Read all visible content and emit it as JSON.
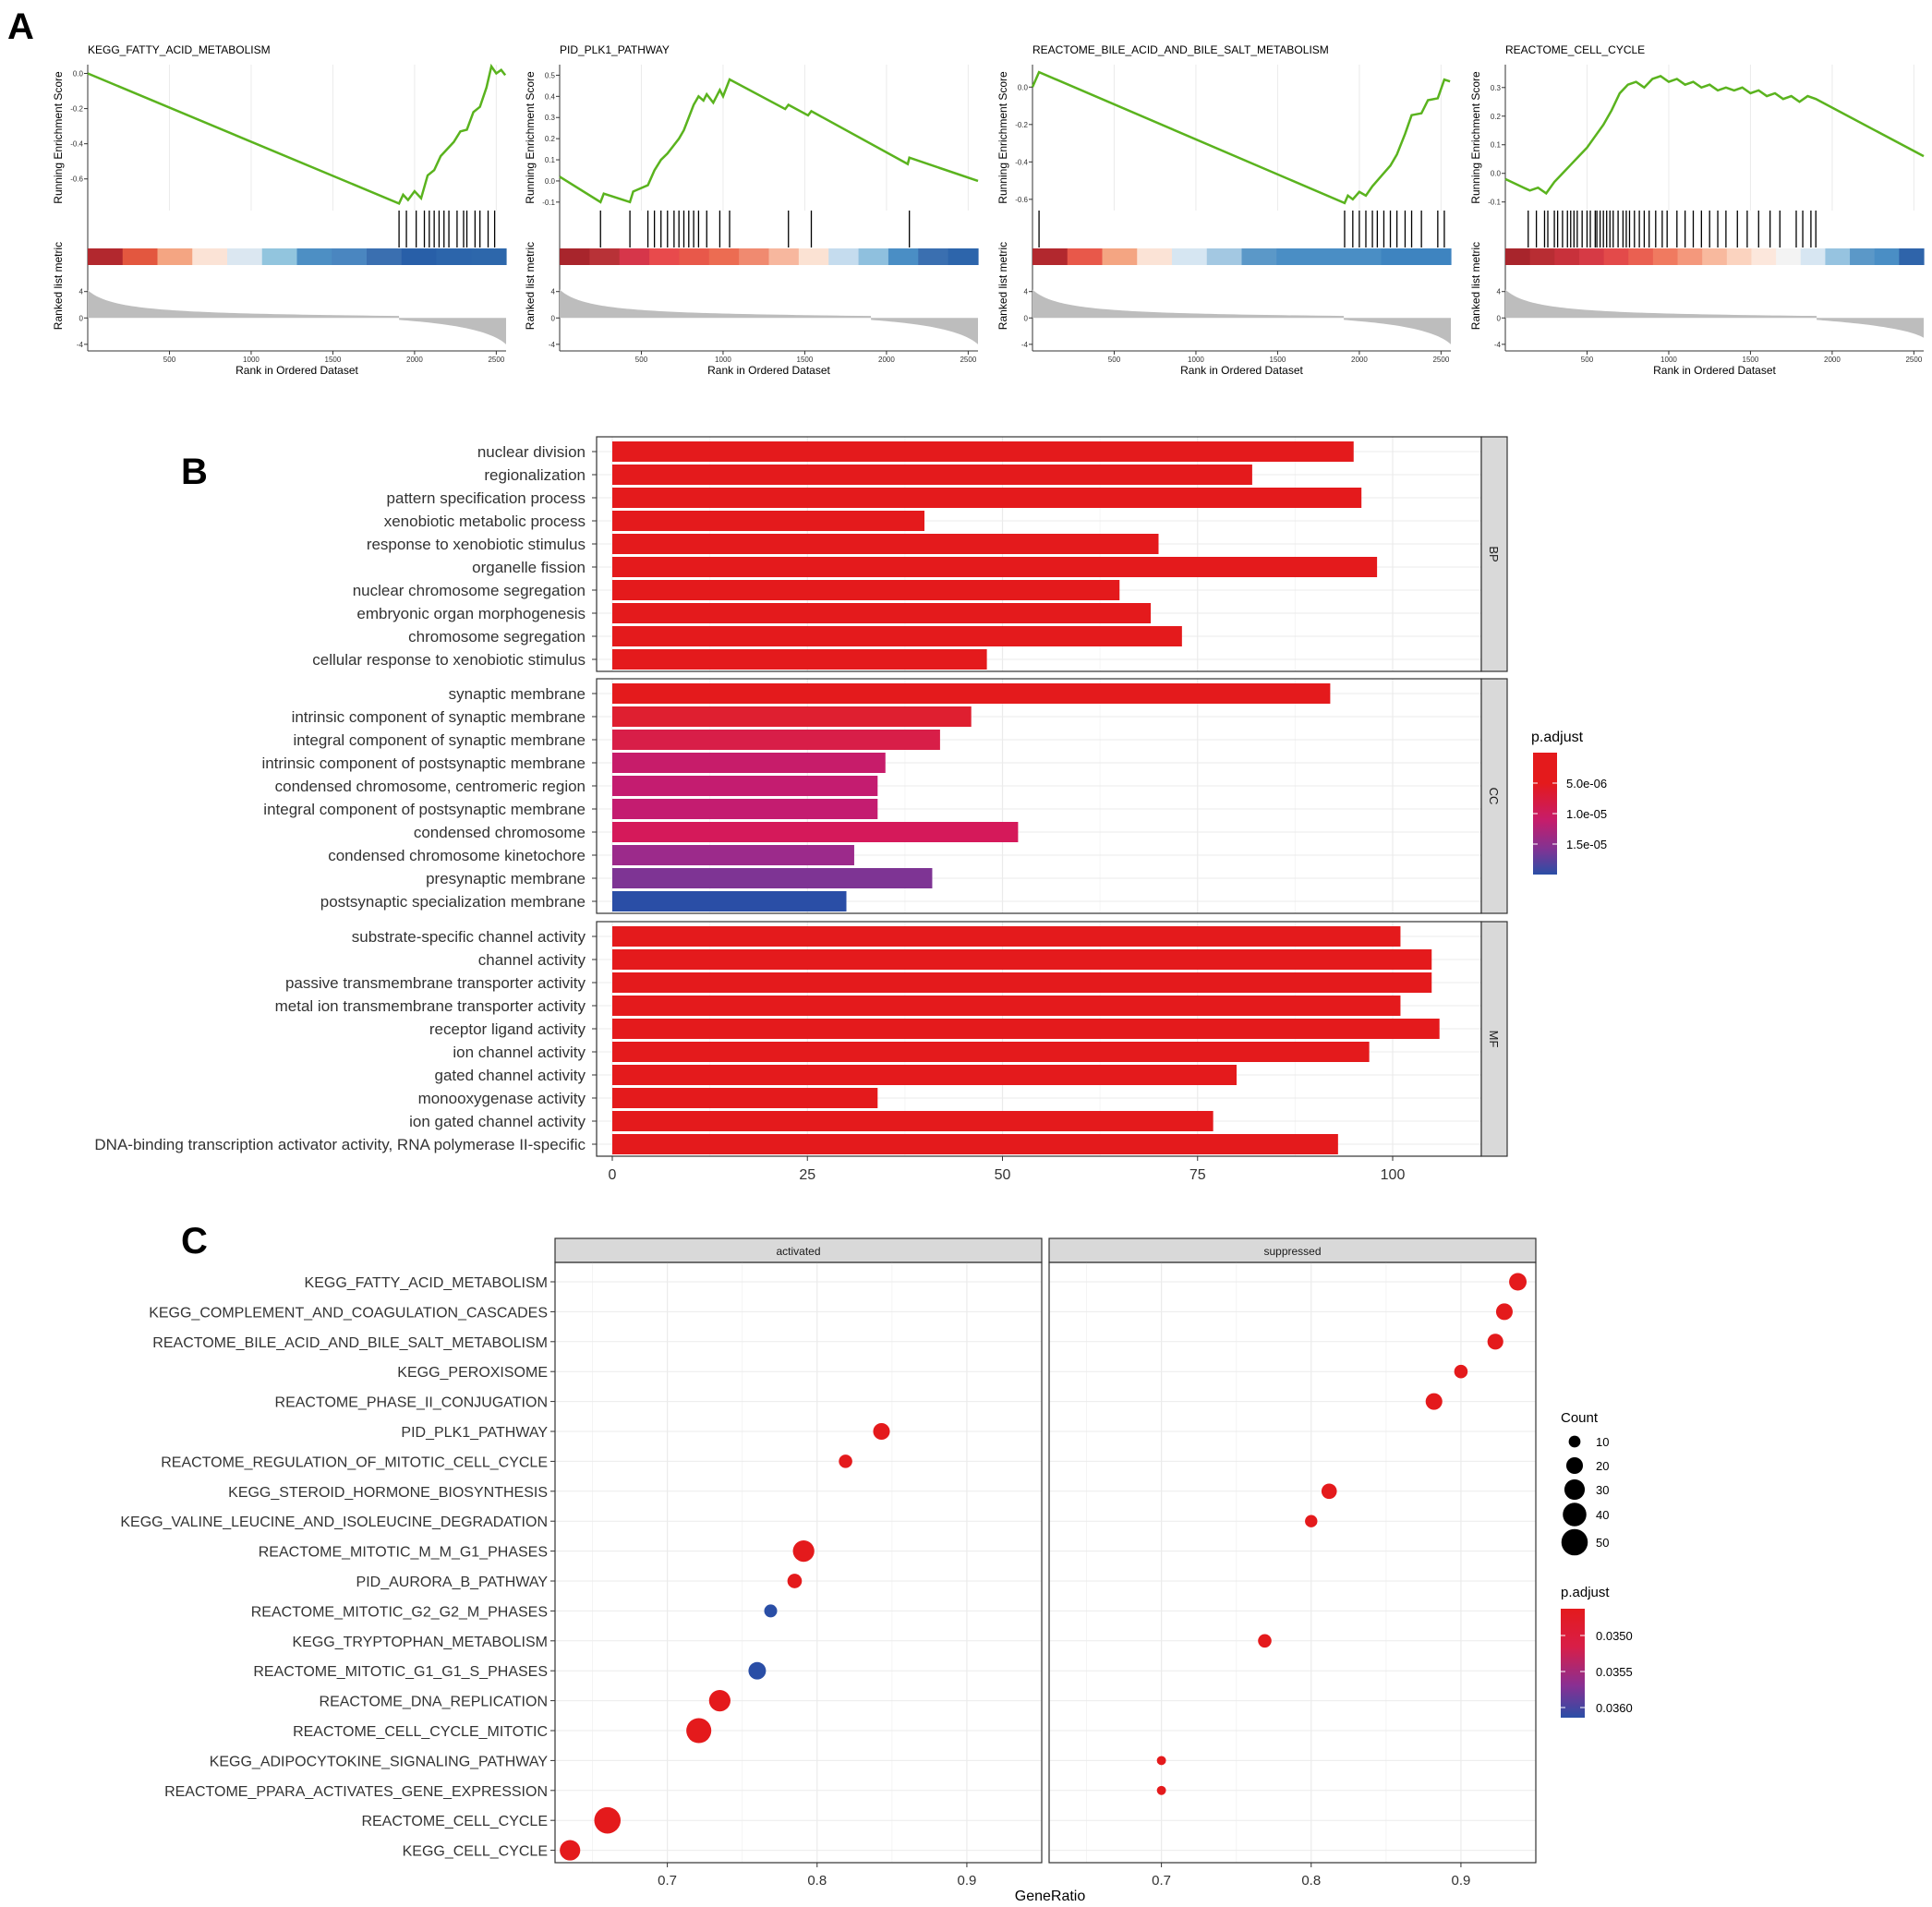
{
  "panels": {
    "a": {
      "letter": "A",
      "common": {
        "ylabel_es": "Running Enrichment Score",
        "ylabel_rank": "Ranked list metric",
        "xlabel": "Rank in Ordered Dataset",
        "x_ticks": [
          "500",
          "1000",
          "1500",
          "2000",
          "2500"
        ],
        "rank_ticks": [
          "4",
          "0",
          "-4"
        ]
      }
    },
    "b": {
      "letter": "B"
    },
    "c": {
      "letter": "C"
    }
  },
  "chart_data": [
    {
      "type": "line",
      "panel": "A1",
      "title": "KEGG_FATTY_ACID_METABOLISM",
      "ylabel": "Running Enrichment Score",
      "xlabel": "Rank in Ordered Dataset",
      "xlim": [
        0,
        2560
      ],
      "ylim": [
        -0.78,
        0.05
      ],
      "y_ticks": [
        0.0,
        -0.2,
        -0.4,
        -0.6
      ],
      "y_tick_labels": [
        "0.0",
        "-0.2",
        "-0.4",
        "-0.6"
      ],
      "es_curve": {
        "x": [
          0,
          1905,
          1930,
          1960,
          2000,
          2040,
          2080,
          2120,
          2160,
          2200,
          2240,
          2280,
          2320,
          2360,
          2400,
          2440,
          2470,
          2500,
          2530,
          2555
        ],
        "y": [
          0.0,
          -0.74,
          -0.69,
          -0.72,
          -0.67,
          -0.71,
          -0.58,
          -0.55,
          -0.47,
          -0.43,
          -0.39,
          -0.33,
          -0.32,
          -0.22,
          -0.19,
          -0.08,
          0.04,
          0.0,
          0.02,
          -0.01
        ]
      },
      "hits": [
        1905,
        1950,
        2010,
        2060,
        2090,
        2120,
        2150,
        2180,
        2210,
        2260,
        2300,
        2320,
        2370,
        2400,
        2450,
        2490
      ],
      "heat_colors": [
        "#b2282e",
        "#e3573f",
        "#f4a582",
        "#fbe3d6",
        "#dbe7f1",
        "#92c5de",
        "#4d8fc4",
        "#4a86c0",
        "#3a6fb0",
        "#285fa8",
        "#2c65ab",
        "#2d67ab"
      ],
      "metric": {
        "start": 4.2,
        "end": -4.0,
        "split": 1905
      }
    },
    {
      "type": "line",
      "panel": "A2",
      "title": "PID_PLK1_PATHWAY",
      "ylabel": "Running Enrichment Score",
      "xlabel": "Rank in Ordered Dataset",
      "xlim": [
        0,
        2560
      ],
      "ylim": [
        -0.14,
        0.55
      ],
      "y_ticks": [
        -0.1,
        0.0,
        0.1,
        0.2,
        0.3,
        0.4,
        0.5
      ],
      "y_tick_labels": [
        "-0.1",
        "0.0",
        "0.1",
        "0.2",
        "0.3",
        "0.4",
        "0.5"
      ],
      "es_curve": {
        "x": [
          0,
          250,
          270,
          430,
          450,
          540,
          580,
          620,
          660,
          700,
          730,
          760,
          790,
          820,
          850,
          880,
          900,
          940,
          980,
          1000,
          1040,
          1380,
          1400,
          1520,
          1540,
          2130,
          2140,
          2560
        ],
        "y": [
          0.02,
          -0.1,
          -0.06,
          -0.1,
          -0.05,
          -0.02,
          0.05,
          0.1,
          0.13,
          0.17,
          0.2,
          0.24,
          0.3,
          0.36,
          0.4,
          0.38,
          0.41,
          0.37,
          0.43,
          0.4,
          0.48,
          0.34,
          0.36,
          0.31,
          0.33,
          0.08,
          0.11,
          0.0
        ]
      },
      "hits": [
        250,
        430,
        540,
        580,
        620,
        660,
        700,
        730,
        760,
        790,
        820,
        850,
        900,
        980,
        1040,
        1400,
        1540,
        2140
      ],
      "heat_colors": [
        "#a8252c",
        "#b83237",
        "#d6364a",
        "#e84a4c",
        "#e8584a",
        "#ec6c52",
        "#f08a70",
        "#f7b79e",
        "#fbe2d3",
        "#c5dcee",
        "#8fc0de",
        "#4a8ec5",
        "#3a6fb0",
        "#2d65ab"
      ],
      "metric": {
        "start": 4.3,
        "end": -4.0,
        "split": 1905
      }
    },
    {
      "type": "line",
      "panel": "A3",
      "title": "REACTOME_BILE_ACID_AND_BILE_SALT_METABOLISM",
      "ylabel": "Running Enrichment Score",
      "xlabel": "Rank in Ordered Dataset",
      "xlim": [
        0,
        2560
      ],
      "ylim": [
        -0.66,
        0.12
      ],
      "y_ticks": [
        0.0,
        -0.2,
        -0.4,
        -0.6
      ],
      "y_tick_labels": [
        "0.0",
        "-0.2",
        "-0.4",
        "-0.6"
      ],
      "es_curve": {
        "x": [
          0,
          40,
          1910,
          1930,
          1960,
          2000,
          2040,
          2080,
          2110,
          2150,
          2190,
          2230,
          2280,
          2320,
          2380,
          2420,
          2480,
          2520,
          2555
        ],
        "y": [
          0.0,
          0.08,
          -0.62,
          -0.58,
          -0.6,
          -0.56,
          -0.58,
          -0.53,
          -0.5,
          -0.46,
          -0.42,
          -0.36,
          -0.25,
          -0.15,
          -0.14,
          -0.07,
          -0.06,
          0.04,
          0.03
        ]
      },
      "hits": [
        40,
        1910,
        1960,
        2000,
        2040,
        2080,
        2110,
        2150,
        2190,
        2230,
        2280,
        2320,
        2380,
        2480,
        2520
      ],
      "heat_colors": [
        "#b2282e",
        "#e8584a",
        "#f4a582",
        "#fbe3d6",
        "#d6e6f2",
        "#a3c8e2",
        "#5b98c8",
        "#4a8ec5",
        "#4a8ec5",
        "#4a8ec5",
        "#3e84c0",
        "#3e84c0"
      ],
      "metric": {
        "start": 4.3,
        "end": -4.0,
        "split": 1905
      }
    },
    {
      "type": "line",
      "panel": "A4",
      "title": "REACTOME_CELL_CYCLE",
      "ylabel": "Running Enrichment Score",
      "xlabel": "Rank in Ordered Dataset",
      "xlim": [
        0,
        2560
      ],
      "ylim": [
        -0.13,
        0.38
      ],
      "y_ticks": [
        -0.1,
        0.0,
        0.1,
        0.2,
        0.3
      ],
      "y_tick_labels": [
        "-0.1",
        "0.0",
        "0.1",
        "0.2",
        "0.3"
      ],
      "es_curve": {
        "x": [
          0,
          150,
          200,
          250,
          300,
          350,
          400,
          450,
          500,
          550,
          600,
          650,
          700,
          750,
          800,
          850,
          900,
          950,
          1000,
          1050,
          1100,
          1150,
          1200,
          1250,
          1300,
          1350,
          1400,
          1450,
          1500,
          1550,
          1600,
          1650,
          1700,
          1750,
          1800,
          1850,
          1900,
          2560
        ],
        "y": [
          -0.02,
          -0.06,
          -0.05,
          -0.07,
          -0.03,
          0.0,
          0.03,
          0.06,
          0.09,
          0.13,
          0.17,
          0.22,
          0.28,
          0.31,
          0.32,
          0.3,
          0.33,
          0.34,
          0.32,
          0.33,
          0.31,
          0.32,
          0.3,
          0.31,
          0.29,
          0.3,
          0.29,
          0.3,
          0.28,
          0.29,
          0.27,
          0.28,
          0.26,
          0.27,
          0.25,
          0.27,
          0.26,
          0.06
        ]
      },
      "hits": [
        140,
        190,
        240,
        260,
        300,
        320,
        350,
        380,
        400,
        420,
        440,
        470,
        500,
        520,
        550,
        560,
        580,
        600,
        620,
        640,
        660,
        690,
        720,
        740,
        760,
        790,
        820,
        850,
        880,
        920,
        960,
        990,
        1050,
        1100,
        1150,
        1200,
        1250,
        1300,
        1350,
        1420,
        1480,
        1550,
        1620,
        1680,
        1780,
        1820,
        1870,
        1900
      ],
      "heat_colors": [
        "#a8252c",
        "#b82d33",
        "#c8313b",
        "#d63a45",
        "#e34a4a",
        "#ea6051",
        "#f07a60",
        "#f4987c",
        "#f8b99e",
        "#fbd3bf",
        "#fce7dc",
        "#f3f3f3",
        "#d7e6f2",
        "#96c3e0",
        "#5b98c8",
        "#4a8ec5",
        "#2f64aa"
      ],
      "metric": {
        "start": 4.3,
        "end": -3.0,
        "split": 1905
      }
    },
    {
      "type": "bar",
      "panel": "B",
      "orientation": "horizontal",
      "xlim": [
        0,
        110
      ],
      "x_ticks": [
        0,
        25,
        50,
        75,
        100
      ],
      "x_tick_labels": [
        "0",
        "25",
        "50",
        "75",
        "100"
      ],
      "grid": true,
      "color_scale": {
        "name": "p.adjust",
        "low": "#e41a1c",
        "high": "#2a4ea6",
        "labels": [
          "5.0e-06",
          "1.0e-05",
          "1.5e-05"
        ]
      },
      "facets": [
        {
          "name": "BP",
          "categories": [
            "nuclear division",
            "regionalization",
            "pattern specification process",
            "xenobiotic metabolic process",
            "response to xenobiotic stimulus",
            "organelle fission",
            "nuclear chromosome segregation",
            "embryonic organ morphogenesis",
            "chromosome segregation",
            "cellular response to xenobiotic stimulus"
          ],
          "values": [
            95,
            82,
            96,
            40,
            70,
            98,
            65,
            69,
            73,
            48
          ],
          "colors": [
            "#e41a1c",
            "#e41a1c",
            "#e41a1c",
            "#e41a1c",
            "#e41a1c",
            "#e41a1c",
            "#e41a1c",
            "#e41a1c",
            "#e41a1c",
            "#e41a1c"
          ]
        },
        {
          "name": "CC",
          "categories": [
            "synaptic membrane",
            "intrinsic component of synaptic membrane",
            "integral component of synaptic membrane",
            "intrinsic component of postsynaptic membrane",
            "condensed chromosome, centromeric region",
            "integral component of postsynaptic membrane",
            "condensed chromosome",
            "condensed chromosome kinetochore",
            "presynaptic membrane",
            "postsynaptic specialization membrane"
          ],
          "values": [
            92,
            46,
            42,
            35,
            34,
            34,
            52,
            31,
            41,
            30
          ],
          "colors": [
            "#e41a1c",
            "#df1f30",
            "#d81e48",
            "#c71c6a",
            "#c41c70",
            "#c41c70",
            "#d5195a",
            "#9c2a8b",
            "#7e3494",
            "#2a4ea6"
          ]
        },
        {
          "name": "MF",
          "categories": [
            "substrate-specific channel activity",
            "channel activity",
            "passive transmembrane transporter activity",
            "metal ion transmembrane transporter activity",
            "receptor ligand activity",
            "ion channel activity",
            "gated channel activity",
            "monooxygenase activity",
            "ion gated channel activity",
            "DNA-binding transcription activator activity, RNA polymerase II-specific"
          ],
          "values": [
            101,
            105,
            105,
            101,
            106,
            97,
            80,
            34,
            77,
            93
          ],
          "colors": [
            "#e41a1c",
            "#e41a1c",
            "#e41a1c",
            "#e41a1c",
            "#e41a1c",
            "#e41a1c",
            "#e41a1c",
            "#e41a1c",
            "#e41a1c",
            "#e41a1c"
          ]
        }
      ]
    },
    {
      "type": "scatter",
      "panel": "C",
      "xlabel": "GeneRatio",
      "xlim": [
        0.625,
        0.95
      ],
      "x_ticks": [
        0.7,
        0.8,
        0.9
      ],
      "x_tick_labels": [
        "0.7",
        "0.8",
        "0.9"
      ],
      "grid": true,
      "categories": [
        "KEGG_FATTY_ACID_METABOLISM",
        "KEGG_COMPLEMENT_AND_COAGULATION_CASCADES",
        "REACTOME_BILE_ACID_AND_BILE_SALT_METABOLISM",
        "KEGG_PEROXISOME",
        "REACTOME_PHASE_II_CONJUGATION",
        "PID_PLK1_PATHWAY",
        "REACTOME_REGULATION_OF_MITOTIC_CELL_CYCLE",
        "KEGG_STEROID_HORMONE_BIOSYNTHESIS",
        "KEGG_VALINE_LEUCINE_AND_ISOLEUCINE_DEGRADATION",
        "REACTOME_MITOTIC_M_M_G1_PHASES",
        "PID_AURORA_B_PATHWAY",
        "REACTOME_MITOTIC_G2_G2_M_PHASES",
        "KEGG_TRYPTOPHAN_METABOLISM",
        "REACTOME_MITOTIC_G1_G1_S_PHASES",
        "REACTOME_DNA_REPLICATION",
        "REACTOME_CELL_CYCLE_MITOTIC",
        "KEGG_ADIPOCYTOKINE_SIGNALING_PATHWAY",
        "REACTOME_PPARA_ACTIVATES_GENE_EXPRESSION",
        "REACTOME_CELL_CYCLE",
        "KEGG_CELL_CYCLE"
      ],
      "facets": [
        {
          "name": "activated",
          "points": [
            {
              "category": "PID_PLK1_PATHWAY",
              "x": 0.843,
              "count": 20,
              "color": "#e41a1c"
            },
            {
              "category": "REACTOME_REGULATION_OF_MITOTIC_CELL_CYCLE",
              "x": 0.819,
              "count": 13,
              "color": "#e41a1c"
            },
            {
              "category": "REACTOME_MITOTIC_M_M_G1_PHASES",
              "x": 0.791,
              "count": 33,
              "color": "#e41a1c"
            },
            {
              "category": "PID_AURORA_B_PATHWAY",
              "x": 0.785,
              "count": 15,
              "color": "#e41a1c"
            },
            {
              "category": "REACTOME_MITOTIC_G2_G2_M_PHASES",
              "x": 0.769,
              "count": 12,
              "color": "#2a4ea6"
            },
            {
              "category": "REACTOME_MITOTIC_G1_G1_S_PHASES",
              "x": 0.76,
              "count": 22,
              "color": "#2a4ea6"
            },
            {
              "category": "REACTOME_DNA_REPLICATION",
              "x": 0.735,
              "count": 33,
              "color": "#e41a1c"
            },
            {
              "category": "REACTOME_CELL_CYCLE_MITOTIC",
              "x": 0.721,
              "count": 45,
              "color": "#e41a1c"
            },
            {
              "category": "REACTOME_CELL_CYCLE",
              "x": 0.66,
              "count": 50,
              "color": "#e41a1c"
            },
            {
              "category": "KEGG_CELL_CYCLE",
              "x": 0.635,
              "count": 30,
              "color": "#e41a1c"
            }
          ]
        },
        {
          "name": "suppressed",
          "points": [
            {
              "category": "KEGG_FATTY_ACID_METABOLISM",
              "x": 0.938,
              "count": 22,
              "color": "#e41a1c"
            },
            {
              "category": "KEGG_COMPLEMENT_AND_COAGULATION_CASCADES",
              "x": 0.929,
              "count": 20,
              "color": "#e41a1c"
            },
            {
              "category": "REACTOME_BILE_ACID_AND_BILE_SALT_METABOLISM",
              "x": 0.923,
              "count": 18,
              "color": "#e41a1c"
            },
            {
              "category": "KEGG_PEROXISOME",
              "x": 0.9,
              "count": 13,
              "color": "#e41a1c"
            },
            {
              "category": "REACTOME_PHASE_II_CONJUGATION",
              "x": 0.882,
              "count": 20,
              "color": "#e41a1c"
            },
            {
              "category": "KEGG_STEROID_HORMONE_BIOSYNTHESIS",
              "x": 0.812,
              "count": 17,
              "color": "#e41a1c"
            },
            {
              "category": "KEGG_VALINE_LEUCINE_AND_ISOLEUCINE_DEGRADATION",
              "x": 0.8,
              "count": 11,
              "color": "#e41a1c"
            },
            {
              "category": "KEGG_TRYPTOPHAN_METABOLISM",
              "x": 0.769,
              "count": 13,
              "color": "#e41a1c"
            },
            {
              "category": "KEGG_ADIPOCYTOKINE_SIGNALING_PATHWAY",
              "x": 0.7,
              "count": 6,
              "color": "#e41a1c"
            },
            {
              "category": "REACTOME_PPARA_ACTIVATES_GENE_EXPRESSION",
              "x": 0.7,
              "count": 6,
              "color": "#e41a1c"
            }
          ]
        }
      ],
      "size_legend": {
        "name": "Count",
        "values": [
          10,
          20,
          30,
          40,
          50
        ],
        "labels": [
          "10",
          "20",
          "30",
          "40",
          "50"
        ]
      },
      "color_scale": {
        "name": "p.adjust",
        "low": "#e41a1c",
        "high": "#2a4ea6",
        "labels": [
          "0.0350",
          "0.0355",
          "0.0360"
        ]
      }
    }
  ]
}
